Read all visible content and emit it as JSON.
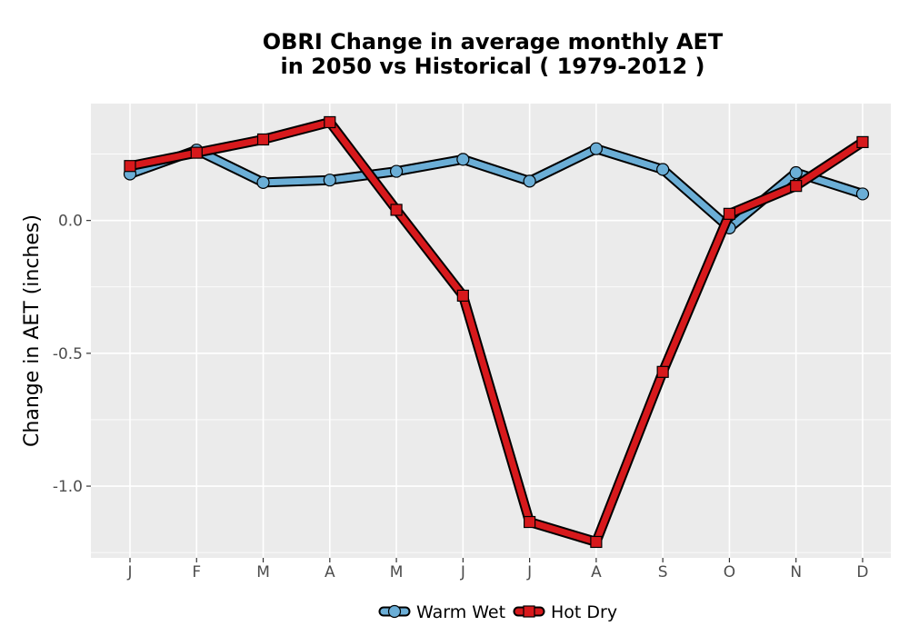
{
  "chart_data": {
    "type": "line",
    "title_lines": [
      "OBRI  Change in average monthly AET",
      "in 2050 vs Historical ( 1979-2012 )"
    ],
    "xlabel": "",
    "ylabel": "Change in AET (inches)",
    "categories": [
      "J",
      "F",
      "M",
      "A",
      "M",
      "J",
      "J",
      "A",
      "S",
      "O",
      "N",
      "D"
    ],
    "ylim": [
      -1.27,
      0.44
    ],
    "yticks": [
      0.0,
      -0.5,
      -1.0
    ],
    "ytick_labels": [
      "0.0",
      "-0.5",
      "-1.0"
    ],
    "grid": true,
    "legend_position": "bottom",
    "series": [
      {
        "name": "Warm Wet",
        "marker": "circle",
        "color": "#6baed6",
        "values": [
          0.175,
          0.265,
          0.143,
          0.152,
          0.185,
          0.23,
          0.148,
          0.27,
          0.192,
          -0.028,
          0.18,
          0.1
        ]
      },
      {
        "name": "Hot Dry",
        "marker": "square",
        "color": "#d7191c",
        "values": [
          0.205,
          0.255,
          0.305,
          0.37,
          0.04,
          -0.283,
          -1.135,
          -1.21,
          -0.57,
          0.025,
          0.13,
          0.295
        ]
      }
    ]
  }
}
